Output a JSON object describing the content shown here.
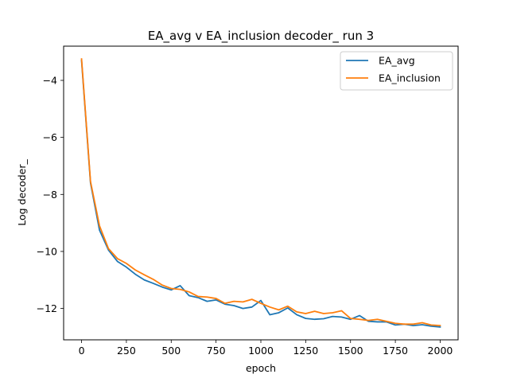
{
  "chart_data": {
    "type": "line",
    "title": "EA_avg v EA_inclusion decoder_ run 3",
    "xlabel": "epoch",
    "ylabel": "Log decoder_",
    "xlim": [
      -100,
      2100
    ],
    "ylim": [
      -13.1,
      -2.8
    ],
    "xticks": [
      0,
      250,
      500,
      750,
      1000,
      1250,
      1500,
      1750,
      2000
    ],
    "yticks": [
      -12,
      -10,
      -8,
      -6,
      -4
    ],
    "grid": false,
    "legend_position": "top-right",
    "series": [
      {
        "name": "EA_avg",
        "color": "#1f77b4",
        "x": [
          0,
          50,
          100,
          150,
          200,
          250,
          300,
          350,
          400,
          450,
          500,
          550,
          600,
          650,
          700,
          750,
          800,
          850,
          900,
          950,
          1000,
          1050,
          1100,
          1150,
          1200,
          1250,
          1300,
          1350,
          1400,
          1450,
          1500,
          1550,
          1600,
          1650,
          1700,
          1750,
          1800,
          1850,
          1900,
          1950,
          2000
        ],
        "y": [
          -3.3,
          -7.6,
          -9.25,
          -9.95,
          -10.35,
          -10.55,
          -10.8,
          -11.0,
          -11.12,
          -11.25,
          -11.35,
          -11.2,
          -11.55,
          -11.62,
          -11.75,
          -11.7,
          -11.85,
          -11.9,
          -12.0,
          -11.95,
          -11.72,
          -12.22,
          -12.15,
          -11.98,
          -12.22,
          -12.35,
          -12.38,
          -12.36,
          -12.28,
          -12.3,
          -12.38,
          -12.25,
          -12.45,
          -12.47,
          -12.47,
          -12.58,
          -12.55,
          -12.6,
          -12.57,
          -12.62,
          -12.65
        ]
      },
      {
        "name": "EA_inclusion",
        "color": "#ff7f0e",
        "x": [
          0,
          50,
          100,
          150,
          200,
          250,
          300,
          350,
          400,
          450,
          500,
          550,
          600,
          650,
          700,
          750,
          800,
          850,
          900,
          950,
          1000,
          1050,
          1100,
          1150,
          1200,
          1250,
          1300,
          1350,
          1400,
          1450,
          1500,
          1550,
          1600,
          1650,
          1700,
          1750,
          1800,
          1850,
          1900,
          1950,
          2000
        ],
        "y": [
          -3.25,
          -7.55,
          -9.1,
          -9.9,
          -10.25,
          -10.42,
          -10.65,
          -10.82,
          -10.98,
          -11.18,
          -11.3,
          -11.33,
          -11.42,
          -11.58,
          -11.6,
          -11.65,
          -11.82,
          -11.75,
          -11.77,
          -11.68,
          -11.82,
          -11.95,
          -12.05,
          -11.92,
          -12.12,
          -12.18,
          -12.1,
          -12.18,
          -12.15,
          -12.08,
          -12.35,
          -12.38,
          -12.42,
          -12.38,
          -12.45,
          -12.52,
          -12.55,
          -12.55,
          -12.5,
          -12.58,
          -12.6
        ]
      }
    ]
  }
}
